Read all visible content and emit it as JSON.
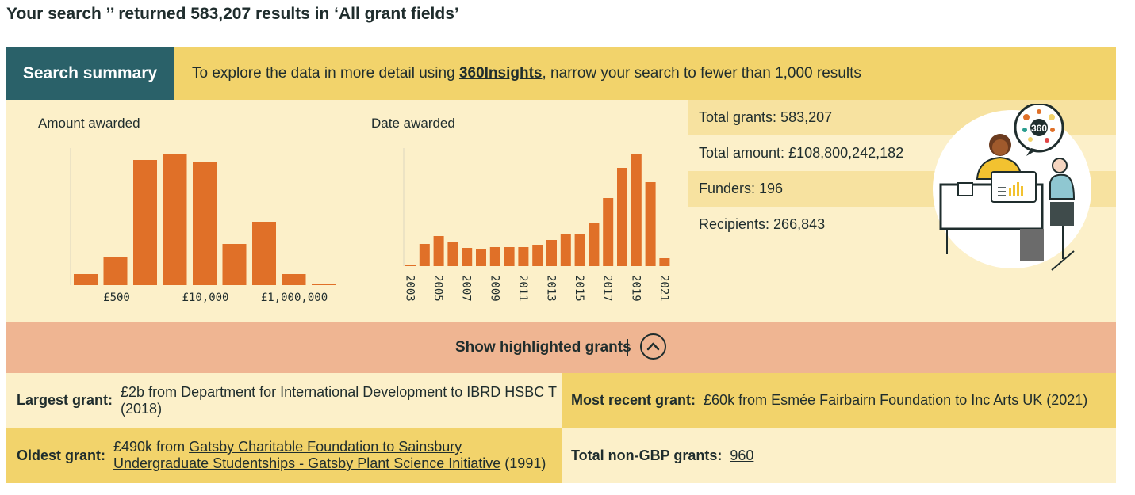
{
  "heading": "Your search ’’ returned 583,207 results in ‘All grant fields’",
  "summary_tab": "Search summary",
  "explore": {
    "before": "To explore the data in more detail using ",
    "link": "360Insights",
    "after": ", narrow your search to fewer than 1,000 results"
  },
  "amount_chart": {
    "title": "Amount awarded",
    "tick_labels": [
      "£500",
      "£10,000",
      "£1,000,000"
    ]
  },
  "date_chart": {
    "title": "Date awarded",
    "tick_labels": [
      "2003",
      "2005",
      "2007",
      "2009",
      "2011",
      "2013",
      "2015",
      "2017",
      "2019",
      "2021"
    ]
  },
  "chart_data": [
    {
      "type": "bar",
      "title": "Amount awarded",
      "categories": [
        "b1",
        "b2",
        "b3",
        "b4",
        "b5",
        "b6",
        "b7",
        "b8",
        "b9"
      ],
      "xticks": [
        "£500",
        "£10,000",
        "£1,000,000"
      ],
      "values": [
        14,
        35,
        158,
        165,
        156,
        52,
        80,
        14,
        1
      ],
      "color": "#e07028"
    },
    {
      "type": "bar",
      "title": "Date awarded",
      "x": [
        2003,
        2004,
        2005,
        2006,
        2007,
        2008,
        2009,
        2010,
        2011,
        2012,
        2013,
        2014,
        2015,
        2016,
        2017,
        2018,
        2019,
        2020,
        2021
      ],
      "values": [
        1,
        28,
        38,
        31,
        23,
        21,
        24,
        24,
        24,
        27,
        33,
        40,
        40,
        55,
        86,
        124,
        142,
        106,
        10
      ],
      "color": "#e07028"
    }
  ],
  "stats": [
    "Total grants: 583,207",
    "Total amount: £108,800,242,182",
    "Funders: 196",
    "Recipients: 266,843"
  ],
  "illustration": {
    "badge": "360"
  },
  "toggle": {
    "label": "Show highlighted grants",
    "icon": "chevron-up-icon"
  },
  "highlights": {
    "largest": {
      "label": "Largest grant:",
      "amount": "£2b from ",
      "link": "Department for International Development to IBRD HSBC T",
      "year": " (2018)"
    },
    "recent": {
      "label": "Most recent grant:",
      "amount": "£60k from ",
      "link": "Esmée Fairbairn Foundation to Inc Arts UK",
      "year": " (2021)"
    },
    "oldest": {
      "label": "Oldest grant:",
      "amount": "£490k from ",
      "link": "Gatsby Charitable Foundation to Sainsbury Undergraduate Studentships - Gatsby Plant Science Initiative",
      "year": " (1991)"
    },
    "non_gbp": {
      "label": "Total non-GBP grants:",
      "link": "960"
    }
  },
  "colors": {
    "teal": "#2a6169",
    "yellow": "#f2d36b",
    "cream": "#fcf0c9",
    "salmon": "#efb592",
    "bar": "#e07028"
  }
}
